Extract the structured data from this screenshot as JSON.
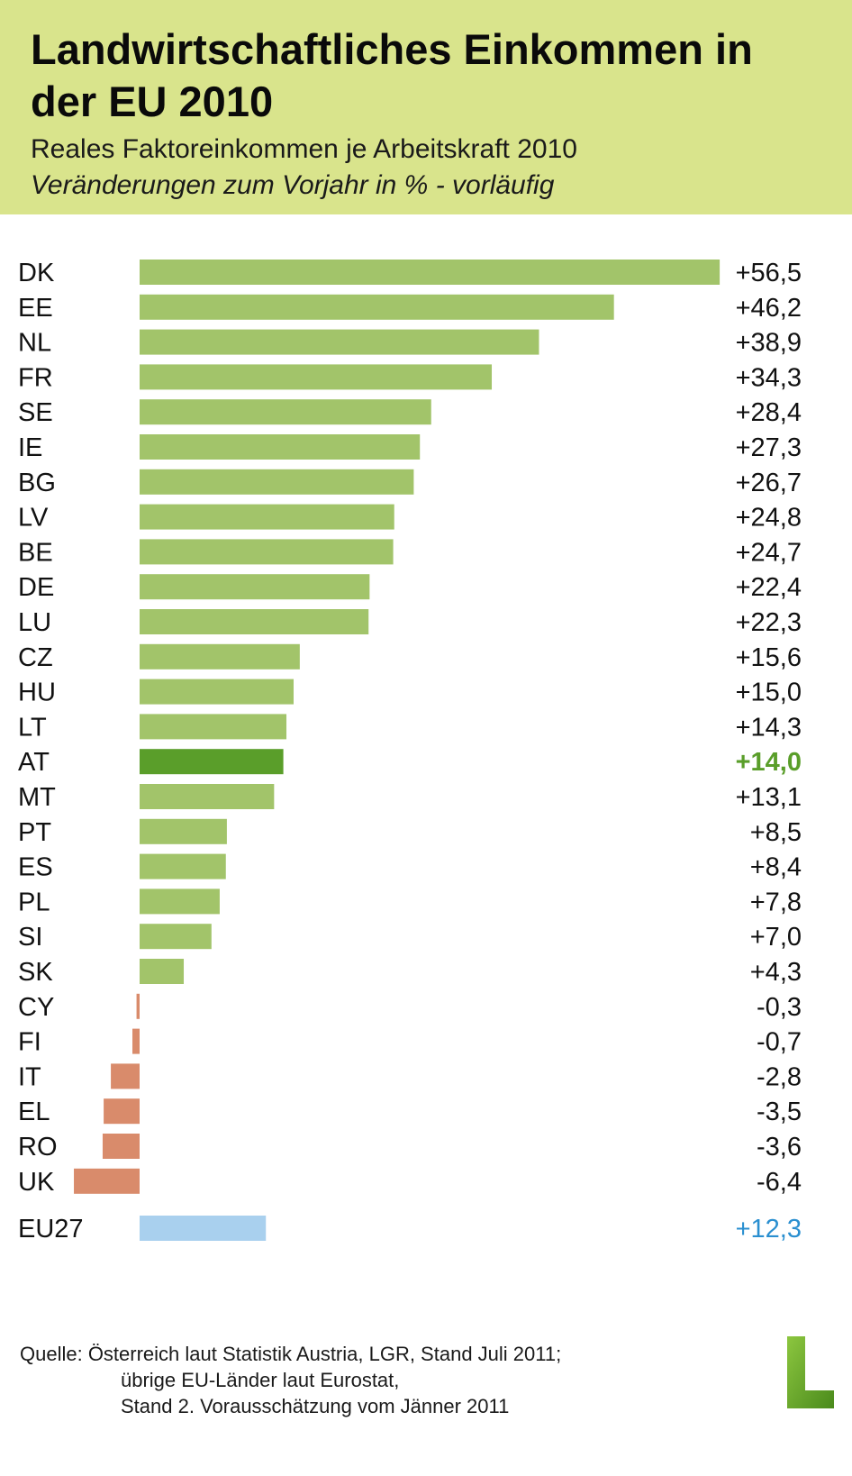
{
  "header": {
    "title": "Landwirtschaftliches Einkommen in der EU 2010",
    "subtitle": "Reales Faktoreinkommen je Arbeitskraft 2010",
    "subtitle_italic": "Veränderungen zum Vorjahr in % - vorläufig"
  },
  "colors": {
    "header_bg": "#d9e48c",
    "positive": "#a2c46a",
    "highlight": "#5a9e2a",
    "negative": "#d98b6b",
    "eu_bar": "#a9d0ee",
    "eu_label": "#2a8fd0"
  },
  "chart_data": {
    "type": "bar",
    "orientation": "horizontal",
    "categories": [
      "DK",
      "EE",
      "NL",
      "FR",
      "SE",
      "IE",
      "BG",
      "LV",
      "BE",
      "DE",
      "LU",
      "CZ",
      "HU",
      "LT",
      "AT",
      "MT",
      "PT",
      "ES",
      "PL",
      "SI",
      "SK",
      "CY",
      "FI",
      "IT",
      "EL",
      "RO",
      "UK"
    ],
    "values": [
      56.5,
      46.2,
      38.9,
      34.3,
      28.4,
      27.3,
      26.7,
      24.8,
      24.7,
      22.4,
      22.3,
      15.6,
      15.0,
      14.3,
      14.0,
      13.1,
      8.5,
      8.4,
      7.8,
      7.0,
      4.3,
      -0.3,
      -0.7,
      -2.8,
      -3.5,
      -3.6,
      -6.4
    ],
    "value_labels": [
      "+56,5",
      "+46,2",
      "+38,9",
      "+34,3",
      "+28,4",
      "+27,3",
      "+26,7",
      "+24,8",
      "+24,7",
      "+22,4",
      "+22,3",
      "+15,6",
      "+15,0",
      "+14,3",
      "+14,0",
      "+13,1",
      "+8,5",
      "+8,4",
      "+7,8",
      "+7,0",
      "+4,3",
      "-0,3",
      "-0,7",
      "-2,8",
      "-3,5",
      "-3,6",
      "-6,4"
    ],
    "highlight": "AT",
    "summary": {
      "category": "EU27",
      "value": 12.3,
      "value_label": "+12,3"
    },
    "xlim": [
      -6.4,
      56.5
    ],
    "grid": false,
    "legend": "none"
  },
  "source": {
    "line1": "Quelle: Österreich laut Statistik Austria, LGR, Stand Juli 2011;",
    "line2": "übrige EU-Länder laut Eurostat,",
    "line3": "Stand 2. Vorausschätzung vom Jänner 2011"
  },
  "logo": {
    "icon": "l-letter-logo-icon"
  }
}
